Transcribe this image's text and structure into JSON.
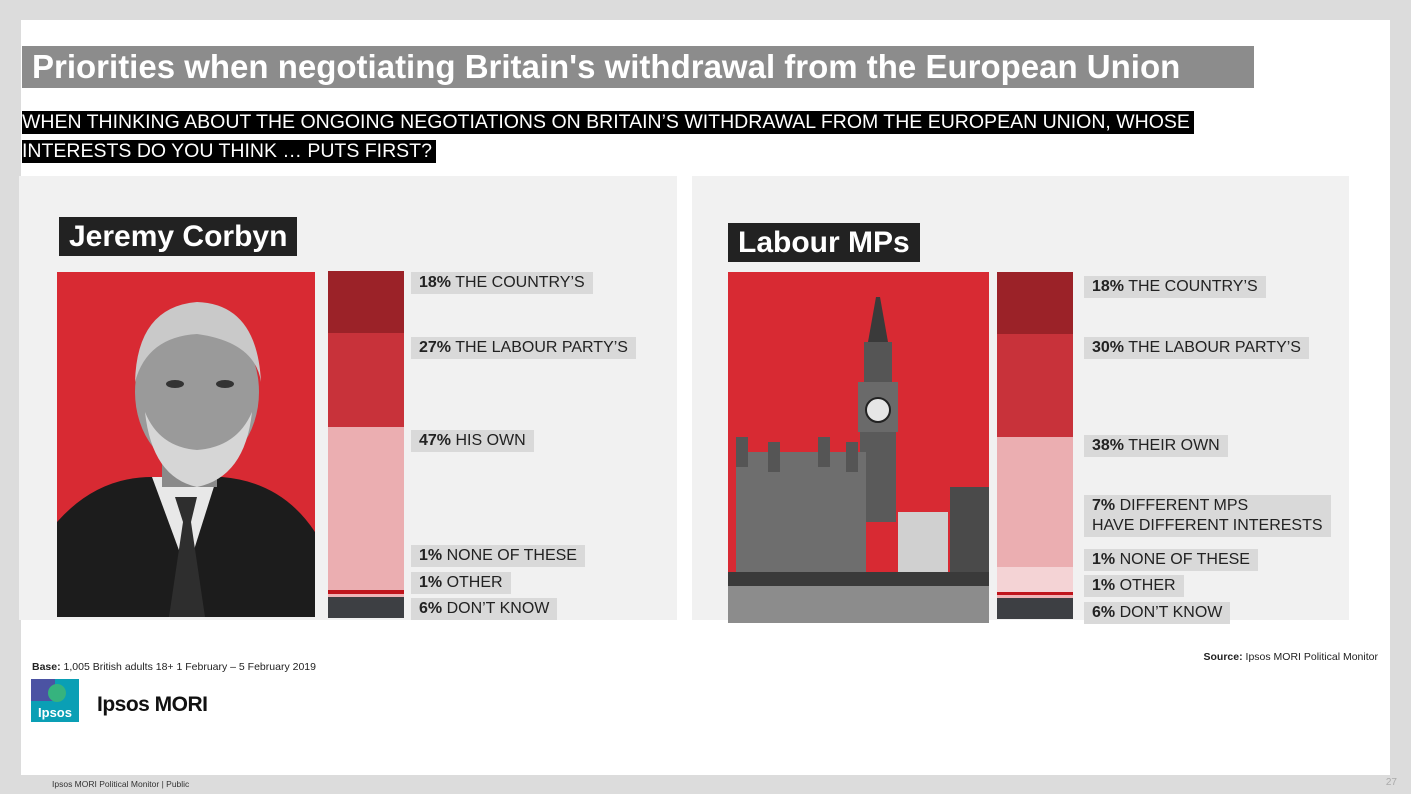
{
  "title": "Priorities when negotiating Britain's withdrawal from the European Union",
  "question": "WHEN THINKING ABOUT THE ONGOING NEGOTIATIONS ON BRITAIN’S WITHDRAWAL FROM THE EUROPEAN UNION, WHOSE INTERESTS DO YOU THINK … PUTS FIRST?",
  "colors": {
    "country": "#9b2228",
    "party": "#c8323a",
    "own": "#ebaeb1",
    "different": "#f4d3d5",
    "none": "#c0141c",
    "other": "#f0b3b6",
    "dont_know": "#3d3f43"
  },
  "chart_data": [
    {
      "type": "bar",
      "title": "Jeremy Corbyn",
      "stacked": true,
      "orientation": "vertical",
      "segments": [
        {
          "key": "country",
          "value": 18,
          "pct": "18%",
          "text": "THE COUNTRY’S"
        },
        {
          "key": "party",
          "value": 27,
          "pct": "27%",
          "text": "THE LABOUR PARTY’S"
        },
        {
          "key": "own",
          "value": 47,
          "pct": "47%",
          "text": "HIS OWN"
        },
        {
          "key": "none",
          "value": 1,
          "pct": "1%",
          "text": "NONE OF THESE"
        },
        {
          "key": "other",
          "value": 1,
          "pct": "1%",
          "text": "OTHER"
        },
        {
          "key": "dont_know",
          "value": 6,
          "pct": "6%",
          "text": "DON’T KNOW"
        }
      ]
    },
    {
      "type": "bar",
      "title": "Labour MPs",
      "stacked": true,
      "orientation": "vertical",
      "segments": [
        {
          "key": "country",
          "value": 18,
          "pct": "18%",
          "text": "THE COUNTRY’S"
        },
        {
          "key": "party",
          "value": 30,
          "pct": "30%",
          "text": "THE LABOUR PARTY’S"
        },
        {
          "key": "own",
          "value": 38,
          "pct": "38%",
          "text": "THEIR OWN"
        },
        {
          "key": "different",
          "value": 7,
          "pct": "7%",
          "text": "DIFFERENT MPS",
          "text2": "HAVE DIFFERENT INTERESTS"
        },
        {
          "key": "none",
          "value": 1,
          "pct": "1%",
          "text": "NONE OF THESE"
        },
        {
          "key": "other",
          "value": 1,
          "pct": "1%",
          "text": "OTHER"
        },
        {
          "key": "dont_know",
          "value": 6,
          "pct": "6%",
          "text": "DON’T KNOW"
        }
      ]
    }
  ],
  "base": {
    "label": "Base:",
    "text": "1,005 British adults 18+ 1 February – 5 February 2019"
  },
  "source": {
    "label": "Source:",
    "text": "Ipsos MORI Political Monitor"
  },
  "logo": {
    "box_text": "Ipsos",
    "name": "Ipsos MORI"
  },
  "footer": "Ipsos MORI Political Monitor | Public",
  "page_number": "27"
}
